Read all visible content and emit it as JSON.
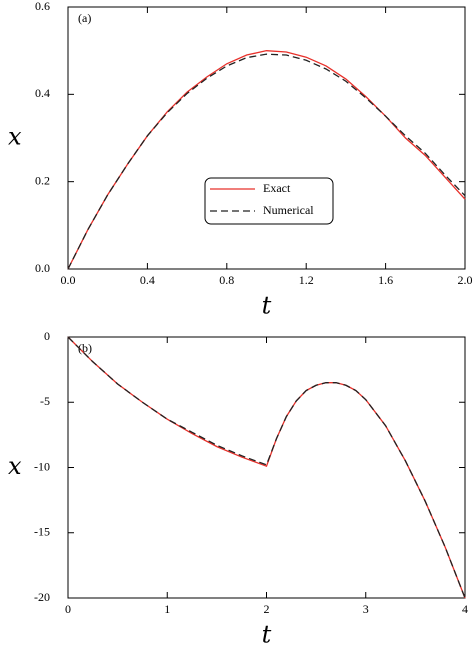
{
  "chart_data": [
    {
      "type": "line",
      "annotation": "(a)",
      "x_label": "t",
      "y_label": "x",
      "x": [
        0,
        0.1,
        0.2,
        0.3,
        0.4,
        0.5,
        0.6,
        0.7,
        0.8,
        0.9,
        1.0,
        1.1,
        1.2,
        1.3,
        1.4,
        1.5,
        1.6,
        1.7,
        1.8,
        1.9,
        2.0
      ],
      "series": [
        {
          "name": "Exact",
          "color": "#e8302a",
          "dash": false,
          "values": [
            0,
            0.09,
            0.17,
            0.24,
            0.305,
            0.36,
            0.405,
            0.44,
            0.47,
            0.49,
            0.5,
            0.497,
            0.485,
            0.465,
            0.435,
            0.395,
            0.35,
            0.3,
            0.26,
            0.21,
            0.16
          ]
        },
        {
          "name": "Numerical",
          "color": "#222222",
          "dash": true,
          "values": [
            0,
            0.09,
            0.17,
            0.24,
            0.305,
            0.358,
            0.402,
            0.437,
            0.465,
            0.484,
            0.492,
            0.49,
            0.478,
            0.458,
            0.43,
            0.392,
            0.35,
            0.305,
            0.265,
            0.215,
            0.168
          ]
        }
      ],
      "xlim": [
        0,
        2
      ],
      "ylim": [
        0,
        0.6
      ],
      "xticks": [
        {
          "value": 0,
          "label": "0.0"
        },
        0.4,
        0.8,
        1.2,
        1.6,
        {
          "value": 2,
          "label": "2.0"
        }
      ],
      "yticks": [
        {
          "value": 0,
          "label": "0.0"
        },
        0.2,
        0.4,
        0.6
      ],
      "legend": "center"
    },
    {
      "type": "line",
      "annotation": "(b)",
      "x_label": "t",
      "y_label": "x",
      "x": [
        0,
        0.25,
        0.5,
        0.75,
        1.0,
        1.25,
        1.5,
        1.75,
        2.0,
        2.1,
        2.2,
        2.3,
        2.4,
        2.5,
        2.6,
        2.7,
        2.8,
        2.9,
        3.0,
        3.2,
        3.4,
        3.6,
        3.8,
        4.0
      ],
      "series": [
        {
          "color": "#e8302a",
          "dash": false,
          "values": [
            0,
            -1.9,
            -3.6,
            -5.0,
            -6.3,
            -7.4,
            -8.4,
            -9.2,
            -9.9,
            -7.8,
            -6.1,
            -4.9,
            -4.1,
            -3.7,
            -3.5,
            -3.5,
            -3.7,
            -4.1,
            -4.8,
            -6.8,
            -9.5,
            -12.6,
            -16.1,
            -20
          ]
        },
        {
          "color": "#222222",
          "dash": true,
          "values": [
            0,
            -1.9,
            -3.6,
            -5.0,
            -6.3,
            -7.3,
            -8.3,
            -9.1,
            -9.8,
            -7.8,
            -6.1,
            -4.9,
            -4.1,
            -3.7,
            -3.5,
            -3.5,
            -3.7,
            -4.1,
            -4.8,
            -6.8,
            -9.5,
            -12.6,
            -16.1,
            -20
          ]
        }
      ],
      "xlim": [
        0,
        4
      ],
      "ylim": [
        -20,
        0
      ],
      "xticks": [
        0,
        1,
        2,
        3,
        4
      ],
      "yticks": [
        0,
        -5,
        -10,
        -15,
        -20
      ]
    }
  ]
}
